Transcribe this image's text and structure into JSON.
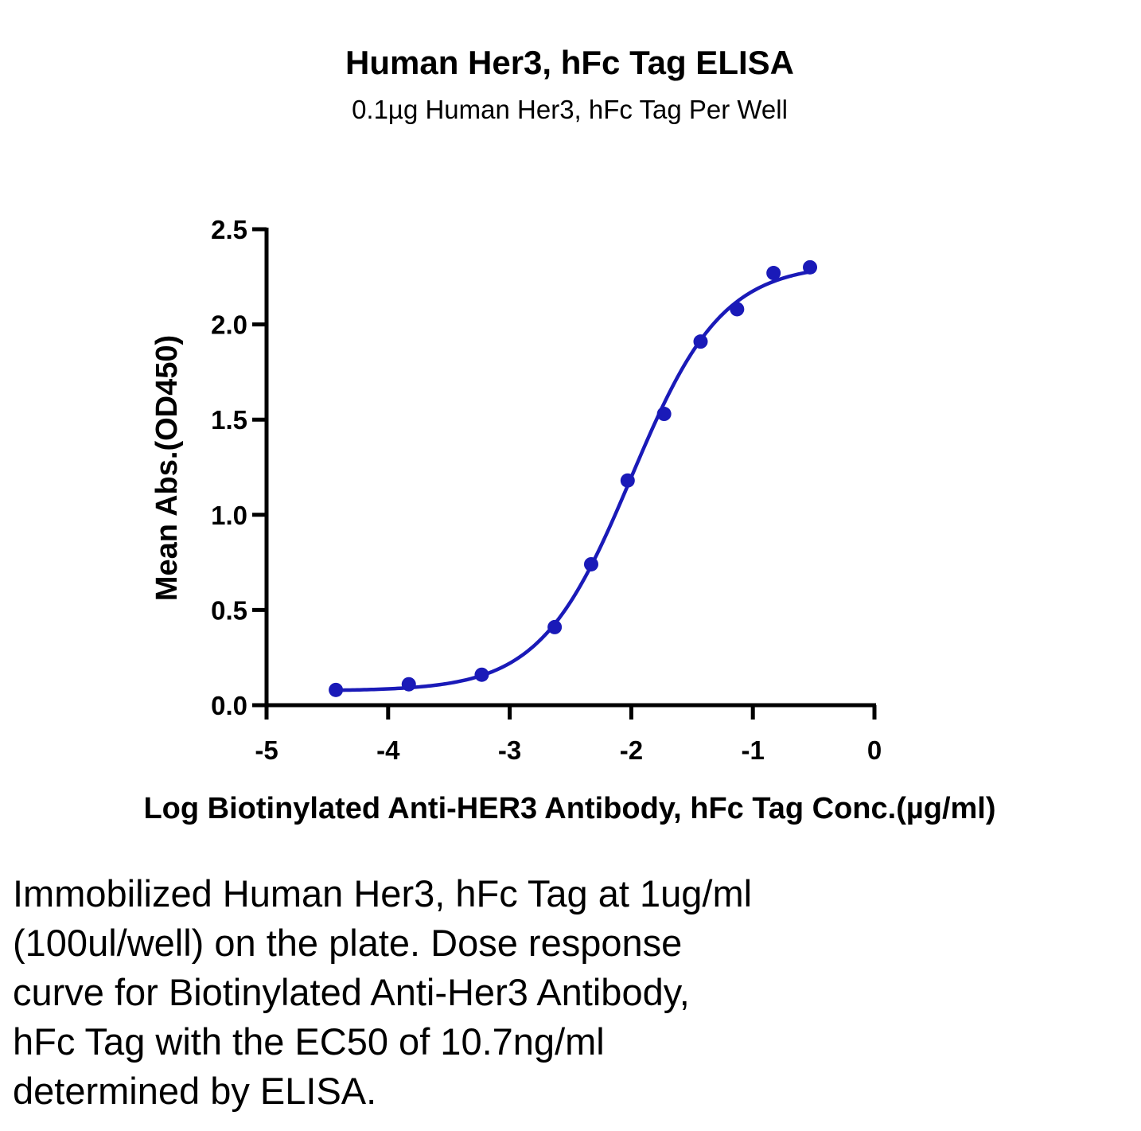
{
  "chart_data": {
    "type": "scatter",
    "title": "Human Her3, hFc Tag ELISA",
    "subtitle": "0.1µg Human Her3, hFc Tag Per Well",
    "xlabel": "Log Biotinylated Anti-HER3 Antibody, hFc Tag Conc.(µg/ml)",
    "ylabel": "Mean Abs.(OD450)",
    "xlim": [
      -5,
      0
    ],
    "ylim": [
      0,
      2.5
    ],
    "xticks": [
      "-5",
      "-4",
      "-3",
      "-2",
      "-1",
      "0"
    ],
    "yticks": [
      "0.0",
      "0.5",
      "1.0",
      "1.5",
      "2.0",
      "2.5"
    ],
    "grid": false,
    "legend": "none",
    "series": [
      {
        "color": "#1a1ab8",
        "marker": "circle",
        "fit": "sigmoid",
        "x": [
          -4.43,
          -3.83,
          -3.23,
          -2.63,
          -2.33,
          -2.03,
          -1.73,
          -1.43,
          -1.13,
          -0.83,
          -0.53
        ],
        "y": [
          0.08,
          0.11,
          0.16,
          0.41,
          0.74,
          1.18,
          1.53,
          1.91,
          2.08,
          2.27,
          2.3
        ]
      }
    ]
  },
  "caption": {
    "lines": [
      "Immobilized Human Her3, hFc Tag at 1ug/ml",
      "(100ul/well) on the plate. Dose response",
      "curve for Biotinylated Anti-Her3 Antibody,",
      "hFc Tag with the EC50 of 10.7ng/ml",
      "determined by ELISA."
    ]
  }
}
